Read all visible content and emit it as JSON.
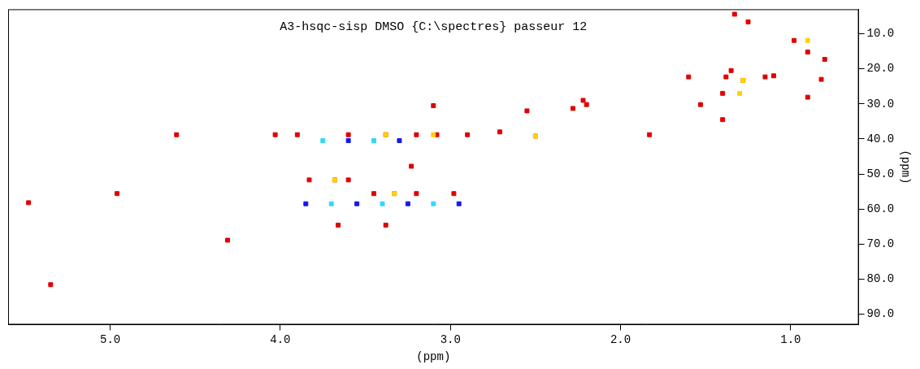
{
  "chart_data": {
    "type": "scatter",
    "title": "A3-hsqc-sisp DMSO {C:\\spectres} passeur 12",
    "x_label": "(ppm)",
    "y_label": "(ppm)",
    "xlim": [
      5.6,
      0.6
    ],
    "xticks": [
      {
        "value": 5,
        "label": "5.0"
      },
      {
        "value": 4,
        "label": "4.0"
      },
      {
        "value": 3,
        "label": "3.0"
      },
      {
        "value": 2,
        "label": "2.0"
      },
      {
        "value": 1,
        "label": "1.0"
      }
    ],
    "ylim": [
      3,
      93
    ],
    "yticks": [
      {
        "value": 10,
        "label": "10.0"
      },
      {
        "value": 20,
        "label": "20.0"
      },
      {
        "value": 30,
        "label": "30.0"
      },
      {
        "value": 40,
        "label": "40.0"
      },
      {
        "value": 50,
        "label": "50.0"
      },
      {
        "value": 60,
        "label": "60.0"
      },
      {
        "value": 70,
        "label": "70.0"
      },
      {
        "value": 80,
        "label": "80.0"
      },
      {
        "value": 90,
        "label": "90.0"
      }
    ],
    "grid": false,
    "marker": "square",
    "x": [
      3.85,
      3.7,
      3.55,
      3.4,
      3.25,
      3.1,
      2.95,
      3.75,
      3.6,
      3.45,
      3.3,
      5.48,
      5.35,
      4.96,
      4.61,
      4.31,
      4.03,
      3.9,
      3.6,
      3.38,
      3.2,
      3.08,
      2.9,
      2.71,
      3.83,
      3.68,
      3.6,
      3.23,
      3.45,
      3.33,
      3.2,
      2.98,
      3.38,
      3.66,
      3.1,
      2.55,
      2.5,
      2.28,
      2.2,
      2.22,
      1.83,
      1.6,
      1.53,
      1.38,
      1.4,
      1.4,
      1.35,
      1.33,
      1.25,
      1.28,
      1.15,
      1.1,
      0.98,
      0.9,
      0.9,
      0.8,
      0.82,
      3.38,
      3.1,
      3.68,
      3.33,
      2.5,
      1.28,
      1.3,
      0.9
    ],
    "values": [
      58.5,
      58.5,
      58.5,
      58.5,
      58.5,
      58.5,
      58.5,
      40.5,
      40.5,
      40.5,
      40.5,
      58.2,
      81.6,
      55.6,
      38.8,
      68.9,
      38.8,
      38.8,
      38.8,
      38.8,
      38.8,
      38.8,
      38.8,
      38.0,
      51.7,
      51.7,
      51.7,
      47.8,
      55.6,
      55.6,
      55.6,
      55.6,
      64.6,
      64.6,
      30.5,
      32.0,
      39.2,
      31.3,
      30.2,
      29.0,
      38.8,
      22.3,
      30.2,
      22.3,
      27.0,
      34.5,
      20.5,
      4.4,
      6.6,
      23.3,
      22.3,
      22.0,
      11.9,
      15.2,
      28.1,
      17.3,
      23.0,
      38.8,
      38.8,
      51.7,
      55.6,
      39.2,
      23.3,
      27.0,
      11.9
    ],
    "colors": [
      "#1818e8",
      "#30d8ff",
      "#1818e8",
      "#30d8ff",
      "#1818e8",
      "#30d8ff",
      "#1818e8",
      "#30d8ff",
      "#1818e8",
      "#30d8ff",
      "#1818e8",
      "#e00000",
      "#e00000",
      "#e00000",
      "#e00000",
      "#e00000",
      "#e00000",
      "#e00000",
      "#e00000",
      "#e00000",
      "#e00000",
      "#e00000",
      "#e00000",
      "#e00000",
      "#e00000",
      "#e00000",
      "#e00000",
      "#e00000",
      "#e00000",
      "#e00000",
      "#e00000",
      "#e00000",
      "#e00000",
      "#e00000",
      "#e00000",
      "#e00000",
      "#e00000",
      "#e00000",
      "#e00000",
      "#e00000",
      "#e00000",
      "#e00000",
      "#e00000",
      "#e00000",
      "#e00000",
      "#e00000",
      "#e00000",
      "#e00000",
      "#e00000",
      "#e00000",
      "#e00000",
      "#e00000",
      "#e00000",
      "#e00000",
      "#e00000",
      "#e00000",
      "#e00000",
      "#ffd200",
      "#ffd200",
      "#ffd200",
      "#ffd200",
      "#ffd200",
      "#ffd200",
      "#ffd200",
      "#ffd200"
    ]
  }
}
